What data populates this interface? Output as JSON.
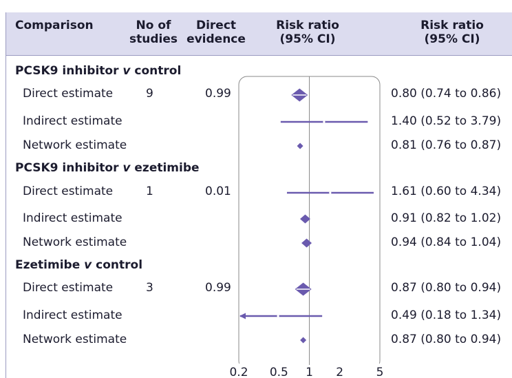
{
  "header": {
    "comparison": "Comparison",
    "no_studies_1": "No of",
    "no_studies_2": "studies",
    "direct_1": "Direct",
    "direct_2": "evidence",
    "rr_plot_1": "Risk ratio",
    "rr_plot_2": "(95% CI)",
    "rr_text_1": "Risk ratio",
    "rr_text_2": "(95% CI)"
  },
  "groups": [
    {
      "title_a": "PCSK9 inhibitor ",
      "title_v": "v",
      "title_b": " control",
      "rows": [
        {
          "label": "Direct estimate",
          "studies": "9",
          "direct": "0.99",
          "ci": "0.80 (0.74 to 0.86)"
        },
        {
          "label": "Indirect estimate",
          "studies": "",
          "direct": "",
          "ci": "1.40 (0.52 to 3.79)"
        },
        {
          "label": "Network estimate",
          "studies": "",
          "direct": "",
          "ci": "0.81 (0.76 to 0.87)"
        }
      ]
    },
    {
      "title_a": "PCSK9 inhibitor ",
      "title_v": "v",
      "title_b": " ezetimibe",
      "rows": [
        {
          "label": "Direct estimate",
          "studies": "1",
          "direct": "0.01",
          "ci": "1.61 (0.60 to 4.34)"
        },
        {
          "label": "Indirect estimate",
          "studies": "",
          "direct": "",
          "ci": "0.91 (0.82 to 1.02)"
        },
        {
          "label": "Network estimate",
          "studies": "",
          "direct": "",
          "ci": "0.94 (0.84 to 1.04)"
        }
      ]
    },
    {
      "title_a": "Ezetimibe ",
      "title_v": "v",
      "title_b": " control",
      "rows": [
        {
          "label": "Direct estimate",
          "studies": "3",
          "direct": "0.99",
          "ci": "0.87 (0.80 to 0.94)"
        },
        {
          "label": "Indirect estimate",
          "studies": "",
          "direct": "",
          "ci": "0.49 (0.18 to 1.34)"
        },
        {
          "label": "Network estimate",
          "studies": "",
          "direct": "",
          "ci": "0.87 (0.80 to 0.94)"
        }
      ]
    }
  ],
  "chart_data": {
    "type": "forest",
    "x_scale": "log",
    "xlim": [
      0.2,
      5
    ],
    "reference_line": 1,
    "x_ticks": [
      "0.2",
      "0.5",
      "1",
      "2",
      "5"
    ],
    "x_tick_values": [
      0.2,
      0.5,
      1,
      2,
      5
    ],
    "points": [
      {
        "group": "PCSK9 inhibitor v control",
        "row": "Direct estimate",
        "estimate": 0.8,
        "lower": 0.74,
        "upper": 0.86,
        "marker": "diamond-large"
      },
      {
        "group": "PCSK9 inhibitor v control",
        "row": "Indirect estimate",
        "estimate": 1.4,
        "lower": 0.52,
        "upper": 3.79,
        "marker": "dot"
      },
      {
        "group": "PCSK9 inhibitor v control",
        "row": "Network estimate",
        "estimate": 0.81,
        "lower": 0.76,
        "upper": 0.87,
        "marker": "diamond-small"
      },
      {
        "group": "PCSK9 inhibitor v ezetimibe",
        "row": "Direct estimate",
        "estimate": 1.61,
        "lower": 0.6,
        "upper": 4.34,
        "marker": "dot"
      },
      {
        "group": "PCSK9 inhibitor v ezetimibe",
        "row": "Indirect estimate",
        "estimate": 0.91,
        "lower": 0.82,
        "upper": 1.02,
        "marker": "diamond-medium"
      },
      {
        "group": "PCSK9 inhibitor v ezetimibe",
        "row": "Network estimate",
        "estimate": 0.94,
        "lower": 0.84,
        "upper": 1.04,
        "marker": "diamond-medium"
      },
      {
        "group": "Ezetimibe v control",
        "row": "Direct estimate",
        "estimate": 0.87,
        "lower": 0.8,
        "upper": 0.94,
        "marker": "diamond-large"
      },
      {
        "group": "Ezetimibe v control",
        "row": "Indirect estimate",
        "estimate": 0.49,
        "lower": 0.18,
        "upper": 1.34,
        "marker": "dot",
        "arrow_left": true
      },
      {
        "group": "Ezetimibe v control",
        "row": "Network estimate",
        "estimate": 0.87,
        "lower": 0.8,
        "upper": 0.94,
        "marker": "diamond-small"
      }
    ],
    "colors": {
      "marker": "#6a5aae",
      "header_bg": "#dcdcef",
      "ref_line": "#8a8a8a",
      "frame": "#8a8a8a"
    }
  }
}
